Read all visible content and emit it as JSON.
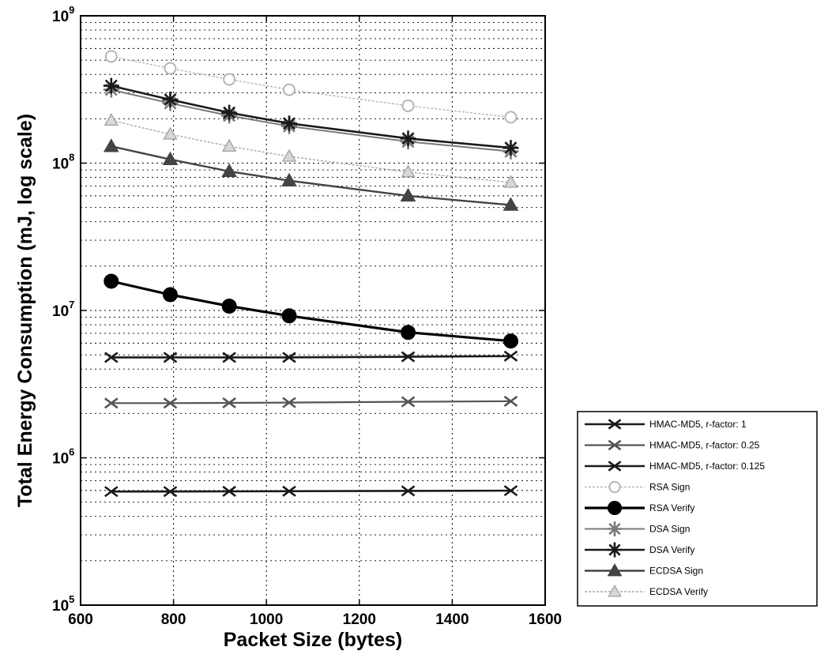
{
  "chart_data": {
    "type": "line",
    "xlabel": "Packet Size (bytes)",
    "ylabel": "Total Energy Consumption (mJ, log scale)",
    "xlim": [
      600,
      1600
    ],
    "ylim": [
      100000,
      1000000000
    ],
    "yscale": "log",
    "grid": "on (major and minor, dotted)",
    "legend_position": "outside-right-bottom",
    "x_ticks": [
      "600",
      "800",
      "1000",
      "1200",
      "1400",
      "1600"
    ],
    "y_ticks": [
      {
        "base": "10",
        "exp": "5"
      },
      {
        "base": "10",
        "exp": "6"
      },
      {
        "base": "10",
        "exp": "7"
      },
      {
        "base": "10",
        "exp": "8"
      },
      {
        "base": "10",
        "exp": "9"
      }
    ],
    "x": [
      666,
      793,
      920,
      1049,
      1305,
      1526
    ],
    "series": [
      {
        "name": "HMAC-MD5, r-factor: 1",
        "marker": "x",
        "color": "#1a1a1a",
        "width": 2.6,
        "values": [
          4800000,
          4800000,
          4800000,
          4800000,
          4850000,
          4900000
        ]
      },
      {
        "name": "HMAC-MD5, r-factor: 0.25",
        "marker": "x",
        "color": "#555555",
        "width": 2.2,
        "values": [
          2350000,
          2350000,
          2360000,
          2370000,
          2400000,
          2420000
        ]
      },
      {
        "name": "HMAC-MD5, r-factor: 0.125",
        "marker": "x",
        "color": "#1a1a1a",
        "width": 2.6,
        "values": [
          590000,
          590000,
          592000,
          593000,
          596000,
          598000
        ]
      },
      {
        "name": "RSA Sign",
        "marker": "circle-open",
        "color": "#b5b5b5",
        "width": 1.4,
        "dashed": true,
        "values": [
          530000000,
          440000000,
          370000000,
          315000000,
          245000000,
          205000000
        ]
      },
      {
        "name": "RSA Verify",
        "marker": "circle",
        "color": "#000000",
        "width": 3.2,
        "values": [
          15800000,
          12800000,
          10700000,
          9200000,
          7100000,
          6200000
        ]
      },
      {
        "name": "DSA Sign",
        "marker": "star",
        "color": "#7a7a7a",
        "width": 2.0,
        "values": [
          315000000,
          255000000,
          210000000,
          178000000,
          140000000,
          120000000
        ]
      },
      {
        "name": "DSA Verify",
        "marker": "star",
        "color": "#1a1a1a",
        "width": 2.6,
        "values": [
          335000000,
          270000000,
          220000000,
          186000000,
          147000000,
          127000000
        ]
      },
      {
        "name": "ECDSA Sign",
        "marker": "triangle",
        "color": "#444444",
        "width": 2.4,
        "values": [
          130000000,
          106000000,
          88000000,
          76000000,
          60000000,
          52000000
        ]
      },
      {
        "name": "ECDSA Verify",
        "marker": "triangle-open",
        "color": "#a8a8a8",
        "width": 1.4,
        "dashed": true,
        "values": [
          195000000,
          157000000,
          130000000,
          111000000,
          87000000,
          74000000
        ]
      }
    ]
  }
}
